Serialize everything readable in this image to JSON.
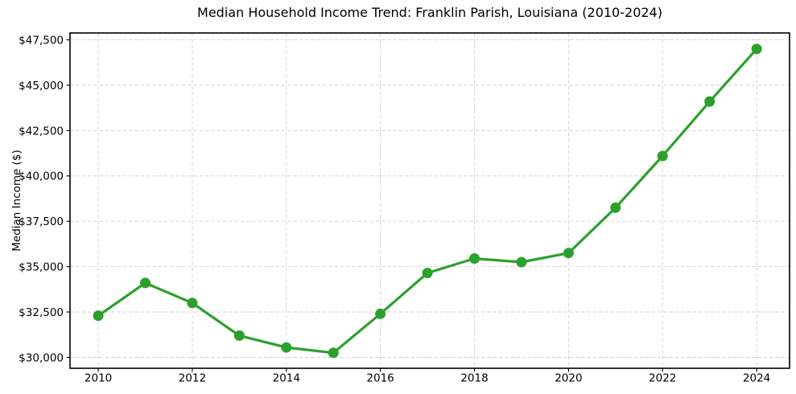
{
  "chart_data": {
    "type": "line",
    "title": "Median Household Income Trend: Franklin Parish, Louisiana (2010-2024)",
    "xlabel": "",
    "ylabel": "Median Income ($)",
    "x": [
      2010,
      2011,
      2012,
      2013,
      2014,
      2015,
      2016,
      2017,
      2018,
      2019,
      2020,
      2021,
      2022,
      2023,
      2024
    ],
    "series": [
      {
        "name": "Median Household Income",
        "values": [
          32300,
          34100,
          33000,
          31200,
          30550,
          30250,
          32400,
          34650,
          35450,
          35250,
          35750,
          38250,
          41100,
          44100,
          47000
        ]
      }
    ],
    "x_ticks": [
      2010,
      2012,
      2014,
      2016,
      2018,
      2020,
      2022,
      2024
    ],
    "y_ticks": [
      30000,
      32500,
      35000,
      37500,
      40000,
      42500,
      45000,
      47500
    ],
    "y_tick_labels": [
      "$30,000",
      "$32,500",
      "$35,000",
      "$37,500",
      "$40,000",
      "$42,500",
      "$45,000",
      "$47,500"
    ],
    "xlim": [
      2009.4,
      2024.7
    ],
    "ylim": [
      29400,
      47880
    ],
    "grid": true,
    "grid_style": "dashed",
    "legend_position": "none",
    "marker": "circle",
    "marker_radius": 6.5,
    "line_width": 3.2,
    "colors": {
      "line": "#2ca02c",
      "grid": "#d2d2d2",
      "axis": "#000000",
      "text": "#000000",
      "background": "#ffffff"
    }
  }
}
